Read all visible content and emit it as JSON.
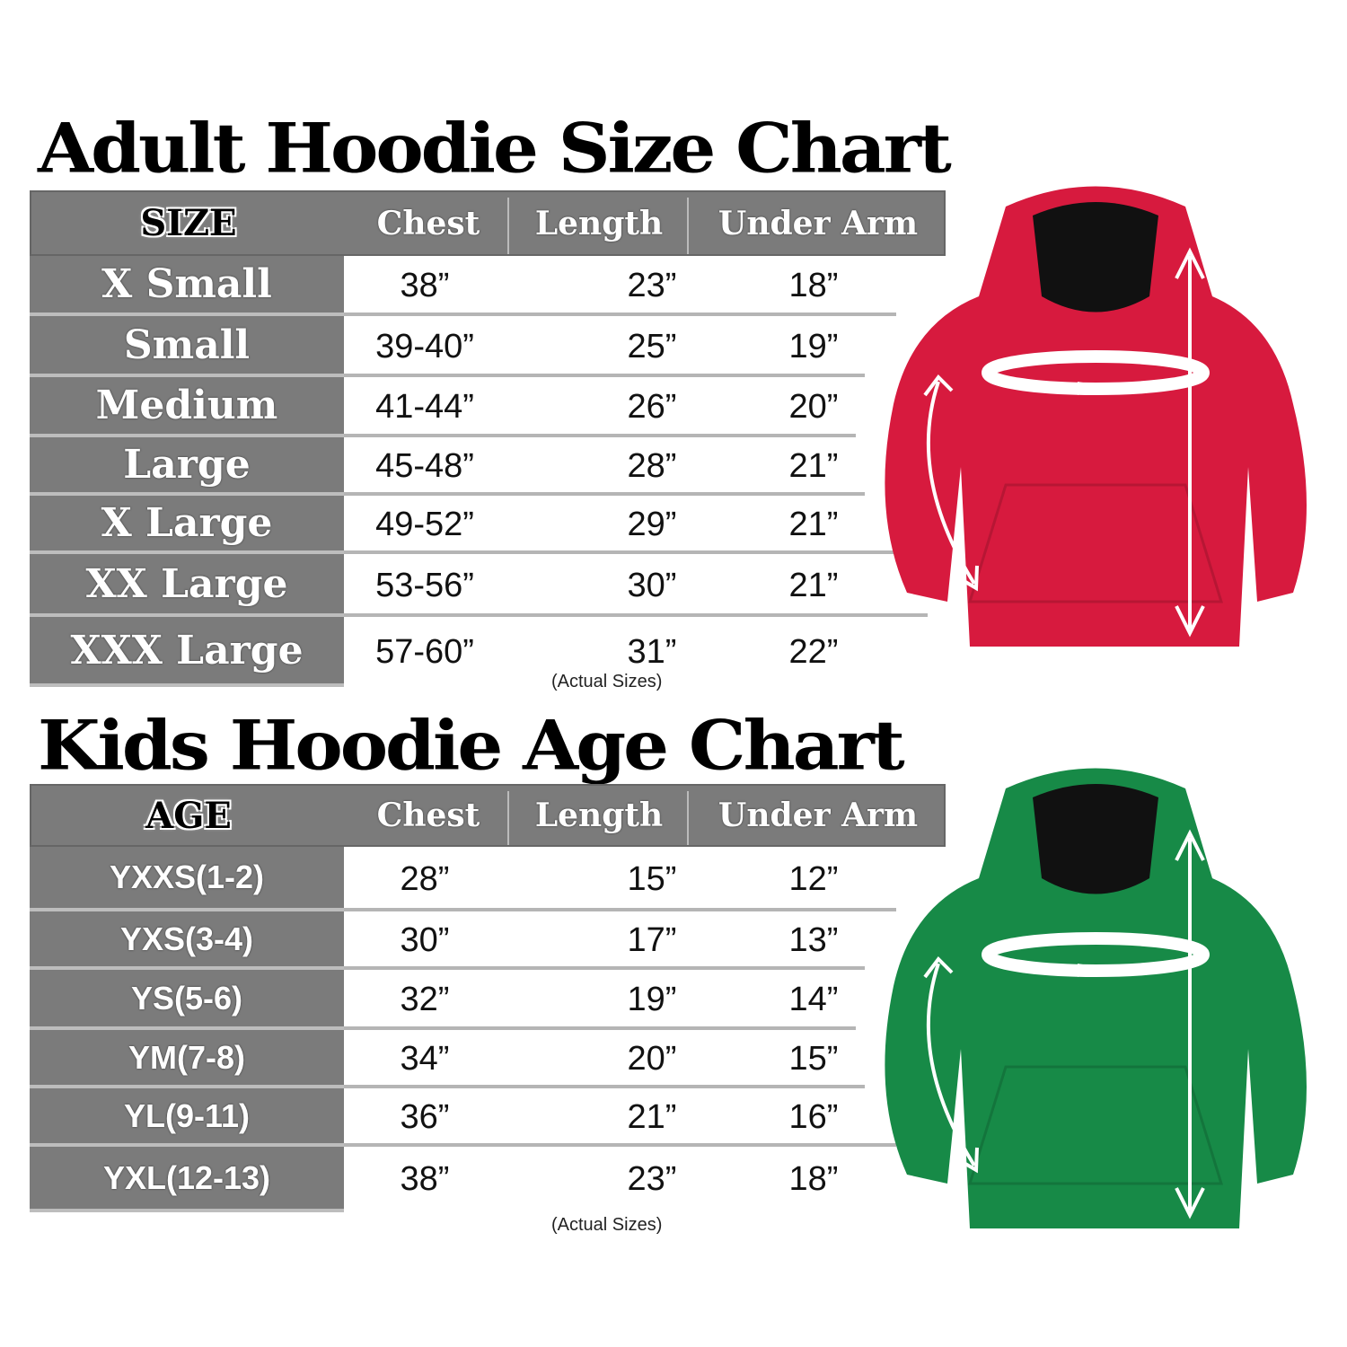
{
  "adult": {
    "title": "Adult Hoodie Size Chart",
    "headers": [
      "SIZE",
      "Chest",
      "Length",
      "Under Arm"
    ],
    "rows": [
      {
        "label": "X Small",
        "chest": "38”",
        "length": "23”",
        "under_arm": "18”"
      },
      {
        "label": "Small",
        "chest": "39-40”",
        "length": "25”",
        "under_arm": "19”"
      },
      {
        "label": "Medium",
        "chest": "41-44”",
        "length": "26”",
        "under_arm": "20”"
      },
      {
        "label": "Large",
        "chest": "45-48”",
        "length": "28”",
        "under_arm": "21”"
      },
      {
        "label": "X Large",
        "chest": "49-52”",
        "length": "29”",
        "under_arm": "21”"
      },
      {
        "label": "XX Large",
        "chest": "53-56”",
        "length": "30”",
        "under_arm": "21”"
      },
      {
        "label": "XXX Large",
        "chest": "57-60”",
        "length": "31”",
        "under_arm": "22”"
      }
    ],
    "note": "(Actual Sizes)",
    "hoodie_color": "#d71a3e"
  },
  "kids": {
    "title": "Kids Hoodie Age Chart",
    "headers": [
      "AGE",
      "Chest",
      "Length",
      "Under Arm"
    ],
    "rows": [
      {
        "label": "YXXS(1-2)",
        "chest": "28”",
        "length": "15”",
        "under_arm": "12”"
      },
      {
        "label": "YXS(3-4)",
        "chest": "30”",
        "length": "17”",
        "under_arm": "13”"
      },
      {
        "label": "YS(5-6)",
        "chest": "32”",
        "length": "19”",
        "under_arm": "14”"
      },
      {
        "label": "YM(7-8)",
        "chest": "34”",
        "length": "20”",
        "under_arm": "15”"
      },
      {
        "label": "YL(9-11)",
        "chest": "36”",
        "length": "21”",
        "under_arm": "16”"
      },
      {
        "label": "YXL(12-13)",
        "chest": "38”",
        "length": "23”",
        "under_arm": "18”"
      }
    ],
    "note": "(Actual Sizes)",
    "hoodie_color": "#178a47"
  },
  "colors": {
    "table_gray": "#7b7b7b",
    "separator": "#b5b5b5"
  }
}
